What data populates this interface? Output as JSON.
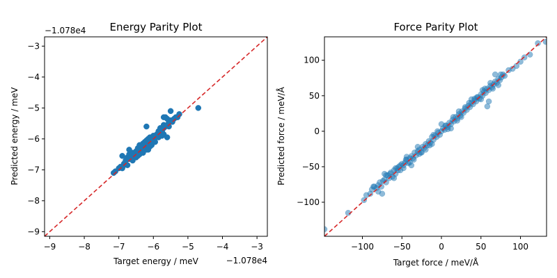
{
  "colors": {
    "points": "#1f77b4",
    "identity_line": "#d62728",
    "axes": "#000000",
    "background": "#ffffff"
  },
  "chart_data": [
    {
      "type": "scatter",
      "title": "Energy Parity Plot",
      "xlabel": "Target energy / meV",
      "ylabel": "Predicted energy / meV",
      "x_offset_label": "−1.078e4",
      "y_offset_label": "−1.078e4",
      "xlim": [
        -9.15,
        -2.7
      ],
      "ylim": [
        -9.15,
        -2.7
      ],
      "xticks": [
        -9,
        -8,
        -7,
        -6,
        -5,
        -4,
        -3
      ],
      "yticks": [
        -9,
        -8,
        -7,
        -6,
        -5,
        -4,
        -3
      ],
      "xtick_labels": [
        "−9",
        "−8",
        "−7",
        "−6",
        "−5",
        "−4",
        "−3"
      ],
      "ytick_labels": [
        "−9",
        "−8",
        "−7",
        "−6",
        "−5",
        "−4",
        "−3"
      ],
      "grid": false,
      "legend": "none",
      "identity_line": true,
      "point_alpha": 1.0,
      "series": [
        {
          "x": [
            -7.15,
            -7.1,
            -7.0,
            -6.95,
            -6.9,
            -6.85,
            -6.8,
            -6.75,
            -6.7,
            -6.7,
            -6.65,
            -6.6,
            -6.6,
            -6.55,
            -6.5,
            -6.5,
            -6.45,
            -6.4,
            -6.4,
            -6.35,
            -6.3,
            -6.3,
            -6.25,
            -6.2,
            -6.2,
            -6.15,
            -6.1,
            -6.1,
            -6.05,
            -6.0,
            -6.0,
            -5.95,
            -5.9,
            -5.9,
            -5.85,
            -5.8,
            -5.8,
            -5.75,
            -5.7,
            -5.7,
            -5.65,
            -5.6,
            -5.6,
            -5.55,
            -5.5,
            -5.45,
            -5.4,
            -5.35,
            -5.3,
            -5.25,
            -6.9,
            -6.75,
            -6.55,
            -6.45,
            -6.35,
            -6.2,
            -6.05,
            -5.95,
            -5.85,
            -5.7,
            -6.8,
            -6.6,
            -6.4,
            -6.25,
            -6.1,
            -5.8,
            -5.65,
            -5.5,
            -6.7,
            -6.3,
            -5.75,
            -5.55,
            -6.2,
            -6.0,
            -5.7,
            -4.7,
            -6.5,
            -6.85,
            -6.15,
            -5.6
          ],
          "y": [
            -7.1,
            -7.05,
            -6.95,
            -6.9,
            -6.55,
            -6.8,
            -6.7,
            -6.6,
            -6.5,
            -6.35,
            -6.6,
            -6.45,
            -6.7,
            -6.5,
            -6.4,
            -6.55,
            -6.3,
            -6.35,
            -6.2,
            -6.25,
            -6.15,
            -6.35,
            -6.1,
            -6.05,
            -6.2,
            -6.0,
            -5.95,
            -6.1,
            -6.0,
            -5.9,
            -6.05,
            -5.95,
            -5.85,
            -5.9,
            -5.75,
            -5.8,
            -5.7,
            -5.75,
            -5.65,
            -5.55,
            -5.6,
            -5.55,
            -5.35,
            -5.45,
            -5.4,
            -5.45,
            -5.35,
            -5.3,
            -5.3,
            -5.2,
            -6.95,
            -6.85,
            -6.6,
            -6.55,
            -6.45,
            -6.35,
            -6.2,
            -6.1,
            -5.95,
            -5.85,
            -6.7,
            -6.5,
            -6.5,
            -6.3,
            -6.25,
            -5.65,
            -5.3,
            -5.1,
            -6.65,
            -6.45,
            -5.9,
            -5.6,
            -5.6,
            -5.9,
            -5.3,
            -5.0,
            -6.6,
            -6.85,
            -6.35,
            -5.95
          ]
        }
      ]
    },
    {
      "type": "scatter",
      "title": "Force Parity Plot",
      "xlabel": "Target force / meV/Å",
      "ylabel": "Predicted force / meV/Å",
      "xlim": [
        -148,
        133
      ],
      "ylim": [
        -148,
        133
      ],
      "xticks": [
        -100,
        -50,
        0,
        50,
        100
      ],
      "yticks": [
        -100,
        -50,
        0,
        50,
        100
      ],
      "xtick_labels": [
        "−100",
        "−50",
        "0",
        "50",
        "100"
      ],
      "ytick_labels": [
        "−100",
        "−50",
        "0",
        "50",
        "100"
      ],
      "grid": false,
      "legend": "none",
      "identity_line": true,
      "point_alpha": 0.5,
      "series": [
        {
          "x": [
            -148,
            -118,
            -98,
            -95,
            -90,
            -88,
            -85,
            -82,
            -80,
            -78,
            -76,
            -74,
            -72,
            -70,
            -68,
            -66,
            -64,
            -62,
            -60,
            -58,
            -56,
            -54,
            -52,
            -50,
            -48,
            -46,
            -44,
            -42,
            -40,
            -38,
            -36,
            -34,
            -32,
            -30,
            -28,
            -26,
            -24,
            -22,
            -20,
            -18,
            -16,
            -14,
            -12,
            -10,
            -8,
            -6,
            -4,
            -2,
            0,
            2,
            4,
            6,
            8,
            10,
            12,
            14,
            16,
            18,
            20,
            22,
            24,
            26,
            28,
            30,
            32,
            34,
            36,
            38,
            40,
            42,
            44,
            46,
            48,
            50,
            52,
            54,
            56,
            58,
            60,
            62,
            64,
            66,
            68,
            70,
            72,
            74,
            76,
            78,
            80,
            85,
            90,
            95,
            100,
            105,
            112,
            122,
            132,
            -72,
            -60,
            -45,
            -30,
            -15,
            0,
            15,
            30,
            45,
            60,
            -55,
            -35,
            -5,
            25,
            55,
            -80,
            -65,
            -52,
            -40,
            -25,
            -10,
            5,
            20,
            35,
            50,
            65,
            75,
            -86,
            -58,
            -44,
            -28,
            -12,
            8,
            22,
            38,
            52,
            68,
            -70,
            -48,
            -20,
            12,
            42,
            62,
            72,
            58,
            -75,
            -38
          ],
          "y": [
            -138,
            -115,
            -97,
            -90,
            -88,
            -82,
            -78,
            -80,
            -76,
            -72,
            -78,
            -70,
            -68,
            -72,
            -62,
            -66,
            -58,
            -64,
            -55,
            -60,
            -52,
            -50,
            -55,
            -46,
            -48,
            -44,
            -40,
            -45,
            -38,
            -35,
            -38,
            -30,
            -34,
            -28,
            -26,
            -30,
            -22,
            -24,
            -18,
            -20,
            -14,
            -16,
            -8,
            -12,
            -6,
            -8,
            -2,
            -5,
            0,
            4,
            2,
            8,
            6,
            12,
            10,
            16,
            14,
            20,
            18,
            24,
            22,
            28,
            26,
            32,
            30,
            36,
            34,
            40,
            38,
            44,
            42,
            48,
            46,
            52,
            50,
            56,
            54,
            60,
            58,
            64,
            62,
            66,
            70,
            68,
            74,
            72,
            76,
            80,
            78,
            86,
            88,
            92,
            98,
            104,
            108,
            124,
            126,
            -60,
            -66,
            -40,
            -22,
            -20,
            10,
            20,
            34,
            48,
            42,
            -55,
            -40,
            0,
            20,
            60,
            -85,
            -60,
            -48,
            -44,
            -30,
            -5,
            8,
            15,
            40,
            45,
            60,
            80,
            -78,
            -52,
            -36,
            -32,
            -18,
            3,
            28,
            45,
            58,
            80,
            -62,
            -52,
            -26,
            4,
            46,
            68,
            65,
            35,
            -88,
            -48
          ]
        }
      ]
    }
  ]
}
